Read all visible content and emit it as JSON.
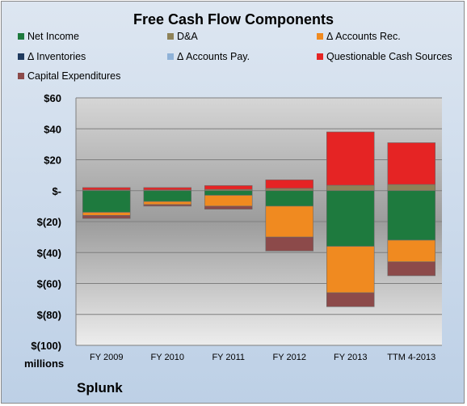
{
  "chart_data": {
    "type": "bar",
    "stacked": true,
    "title": "Free Cash Flow Components",
    "categories": [
      "FY 2009",
      "FY 2010",
      "FY 2011",
      "FY 2012",
      "FY 2013",
      "TTM 4-2013"
    ],
    "series": [
      {
        "name": "Net Income",
        "color": "#1e7a3e",
        "values": [
          -14,
          -7,
          -3,
          -10,
          -36,
          -32
        ]
      },
      {
        "name": "D&A",
        "color": "#8e8258",
        "values": [
          0.5,
          0.5,
          0.8,
          1.5,
          3.5,
          4
        ]
      },
      {
        "name": "Δ Accounts Rec.",
        "color": "#f08a20",
        "values": [
          -2,
          -2,
          -7,
          -20,
          -30,
          -14
        ]
      },
      {
        "name": "Δ Inventories",
        "color": "#1f3a5f",
        "values": [
          0,
          0,
          0,
          0,
          0,
          0
        ]
      },
      {
        "name": "Δ Accounts Pay.",
        "color": "#8fb2d8",
        "values": [
          0,
          0,
          0,
          0,
          0,
          0
        ]
      },
      {
        "name": "Questionable Cash Sources",
        "color": "#e52424",
        "values": [
          1.5,
          1.5,
          2.5,
          5.5,
          34.5,
          27
        ]
      },
      {
        "name": "Capital Expenditures",
        "color": "#8c4a4a",
        "values": [
          -2,
          -1,
          -2,
          -9,
          -9,
          -9
        ]
      }
    ],
    "ylim": [
      -100,
      60
    ],
    "yticks": [
      60,
      40,
      20,
      0,
      -20,
      -40,
      -60,
      -80,
      -100
    ],
    "ytick_labels": [
      "$60",
      "$40",
      "$20",
      "$-",
      "$(20)",
      "$(40)",
      "$(60)",
      "$(80)",
      "$(100)"
    ],
    "units_label": "millions",
    "grid": true
  },
  "company": "Splunk"
}
